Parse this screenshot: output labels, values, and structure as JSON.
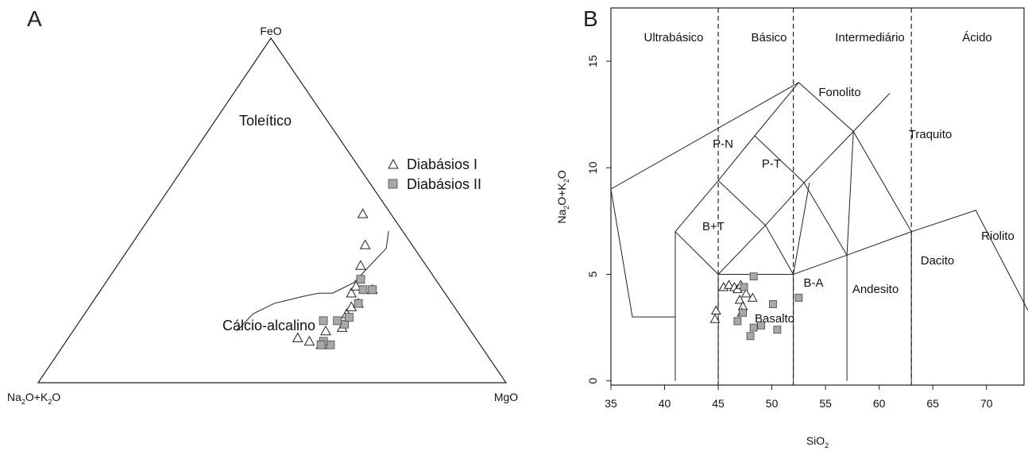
{
  "chart_data": [
    {
      "type": "scatter",
      "panel": "A",
      "diagram": "AFM ternary",
      "vertices": {
        "top": "FeO",
        "left_sub": [
          "Na",
          "2",
          "O+K",
          "2",
          "O"
        ],
        "right": "MgO"
      },
      "fields": [
        "Toleítico",
        "Cálcio-alcalino"
      ],
      "legend": {
        "placement": "right",
        "entries": [
          {
            "name": "Diabásios I",
            "symbol": "triangle"
          },
          {
            "name": "Diabásios II",
            "symbol": "square",
            "color": "#a8a8a8"
          }
        ]
      },
      "series": [
        {
          "name": "Diabásios I",
          "points": [
            [
              36,
              12,
              52
            ],
            [
              34,
              11,
              55
            ],
            [
              38,
              13,
              49
            ],
            [
              31,
              15,
              54
            ],
            [
              27,
              16,
              57
            ],
            [
              24,
              20,
              56
            ],
            [
              22,
              22,
              56
            ],
            [
              20,
              23,
              57
            ],
            [
              20,
              26,
              54
            ],
            [
              18,
              28,
              54
            ],
            [
              15,
              27,
              58
            ],
            [
              14,
              34,
              52
            ],
            [
              10,
              40,
              50
            ],
            [
              6,
              49,
              45
            ]
          ]
        },
        {
          "name": "Diabásios II",
          "points": [
            [
              32,
              11,
              57
            ],
            [
              33,
              12,
              55
            ],
            [
              34,
              11,
              55
            ],
            [
              30,
              18,
              52
            ],
            [
              26,
              17,
              57
            ],
            [
              27,
              18,
              55
            ],
            [
              24,
              19,
              57
            ],
            [
              20,
              23,
              57
            ],
            [
              17,
              27,
              56
            ],
            [
              15,
              27,
              58
            ],
            [
              16,
              30,
              54
            ]
          ]
        }
      ],
      "boundary_curve": [
        [
          50,
          15,
          35
        ],
        [
          44,
          20,
          36
        ],
        [
          38,
          23,
          39
        ],
        [
          31,
          25,
          44
        ],
        [
          27,
          26,
          47
        ],
        [
          24,
          26,
          50
        ],
        [
          18,
          29,
          53
        ],
        [
          12,
          34,
          54
        ],
        [
          6,
          39,
          55
        ],
        [
          3,
          44,
          53
        ]
      ]
    },
    {
      "type": "scatter",
      "panel": "B",
      "diagram": "TAS",
      "xlabel_parts": [
        "SiO",
        "2"
      ],
      "ylabel_parts": [
        "Na",
        "2",
        "O+K",
        "2",
        "O"
      ],
      "xlim": [
        35,
        73.5
      ],
      "ylim": [
        -0.2,
        17.5
      ],
      "xticks": [
        35,
        40,
        45,
        50,
        55,
        60,
        65,
        70
      ],
      "yticks": [
        0,
        5,
        10,
        15
      ],
      "dashed_lines_x": [
        45,
        52,
        63
      ],
      "header_labels": [
        "Ultrabásico",
        "Básico",
        "Intermediário",
        "Ácido"
      ],
      "field_labels": [
        "Fonolito",
        "P-N",
        "P-T",
        "Traquito",
        "B+T",
        "Riolito",
        "B-A",
        "Andesito",
        "Dacito",
        "Basalto"
      ],
      "series": [
        {
          "name": "Diabásios I",
          "points": [
            [
              44.7,
              2.9
            ],
            [
              44.8,
              3.3
            ],
            [
              45.5,
              4.4
            ],
            [
              46.0,
              4.5
            ],
            [
              46.5,
              4.4
            ],
            [
              46.8,
              4.3
            ],
            [
              47.1,
              4.5
            ],
            [
              47.0,
              3.8
            ],
            [
              47.3,
              3.5
            ],
            [
              47.6,
              4.1
            ],
            [
              48.2,
              3.9
            ],
            [
              47.2,
              3.2
            ]
          ]
        },
        {
          "name": "Diabásios II",
          "points": [
            [
              48.3,
              4.9
            ],
            [
              47.4,
              4.4
            ],
            [
              47.3,
              3.2
            ],
            [
              46.8,
              2.8
            ],
            [
              48.3,
              2.5
            ],
            [
              49.0,
              2.6
            ],
            [
              50.1,
              3.6
            ],
            [
              50.5,
              2.4
            ],
            [
              48.0,
              2.1
            ],
            [
              52.5,
              3.9
            ]
          ]
        }
      ]
    }
  ]
}
